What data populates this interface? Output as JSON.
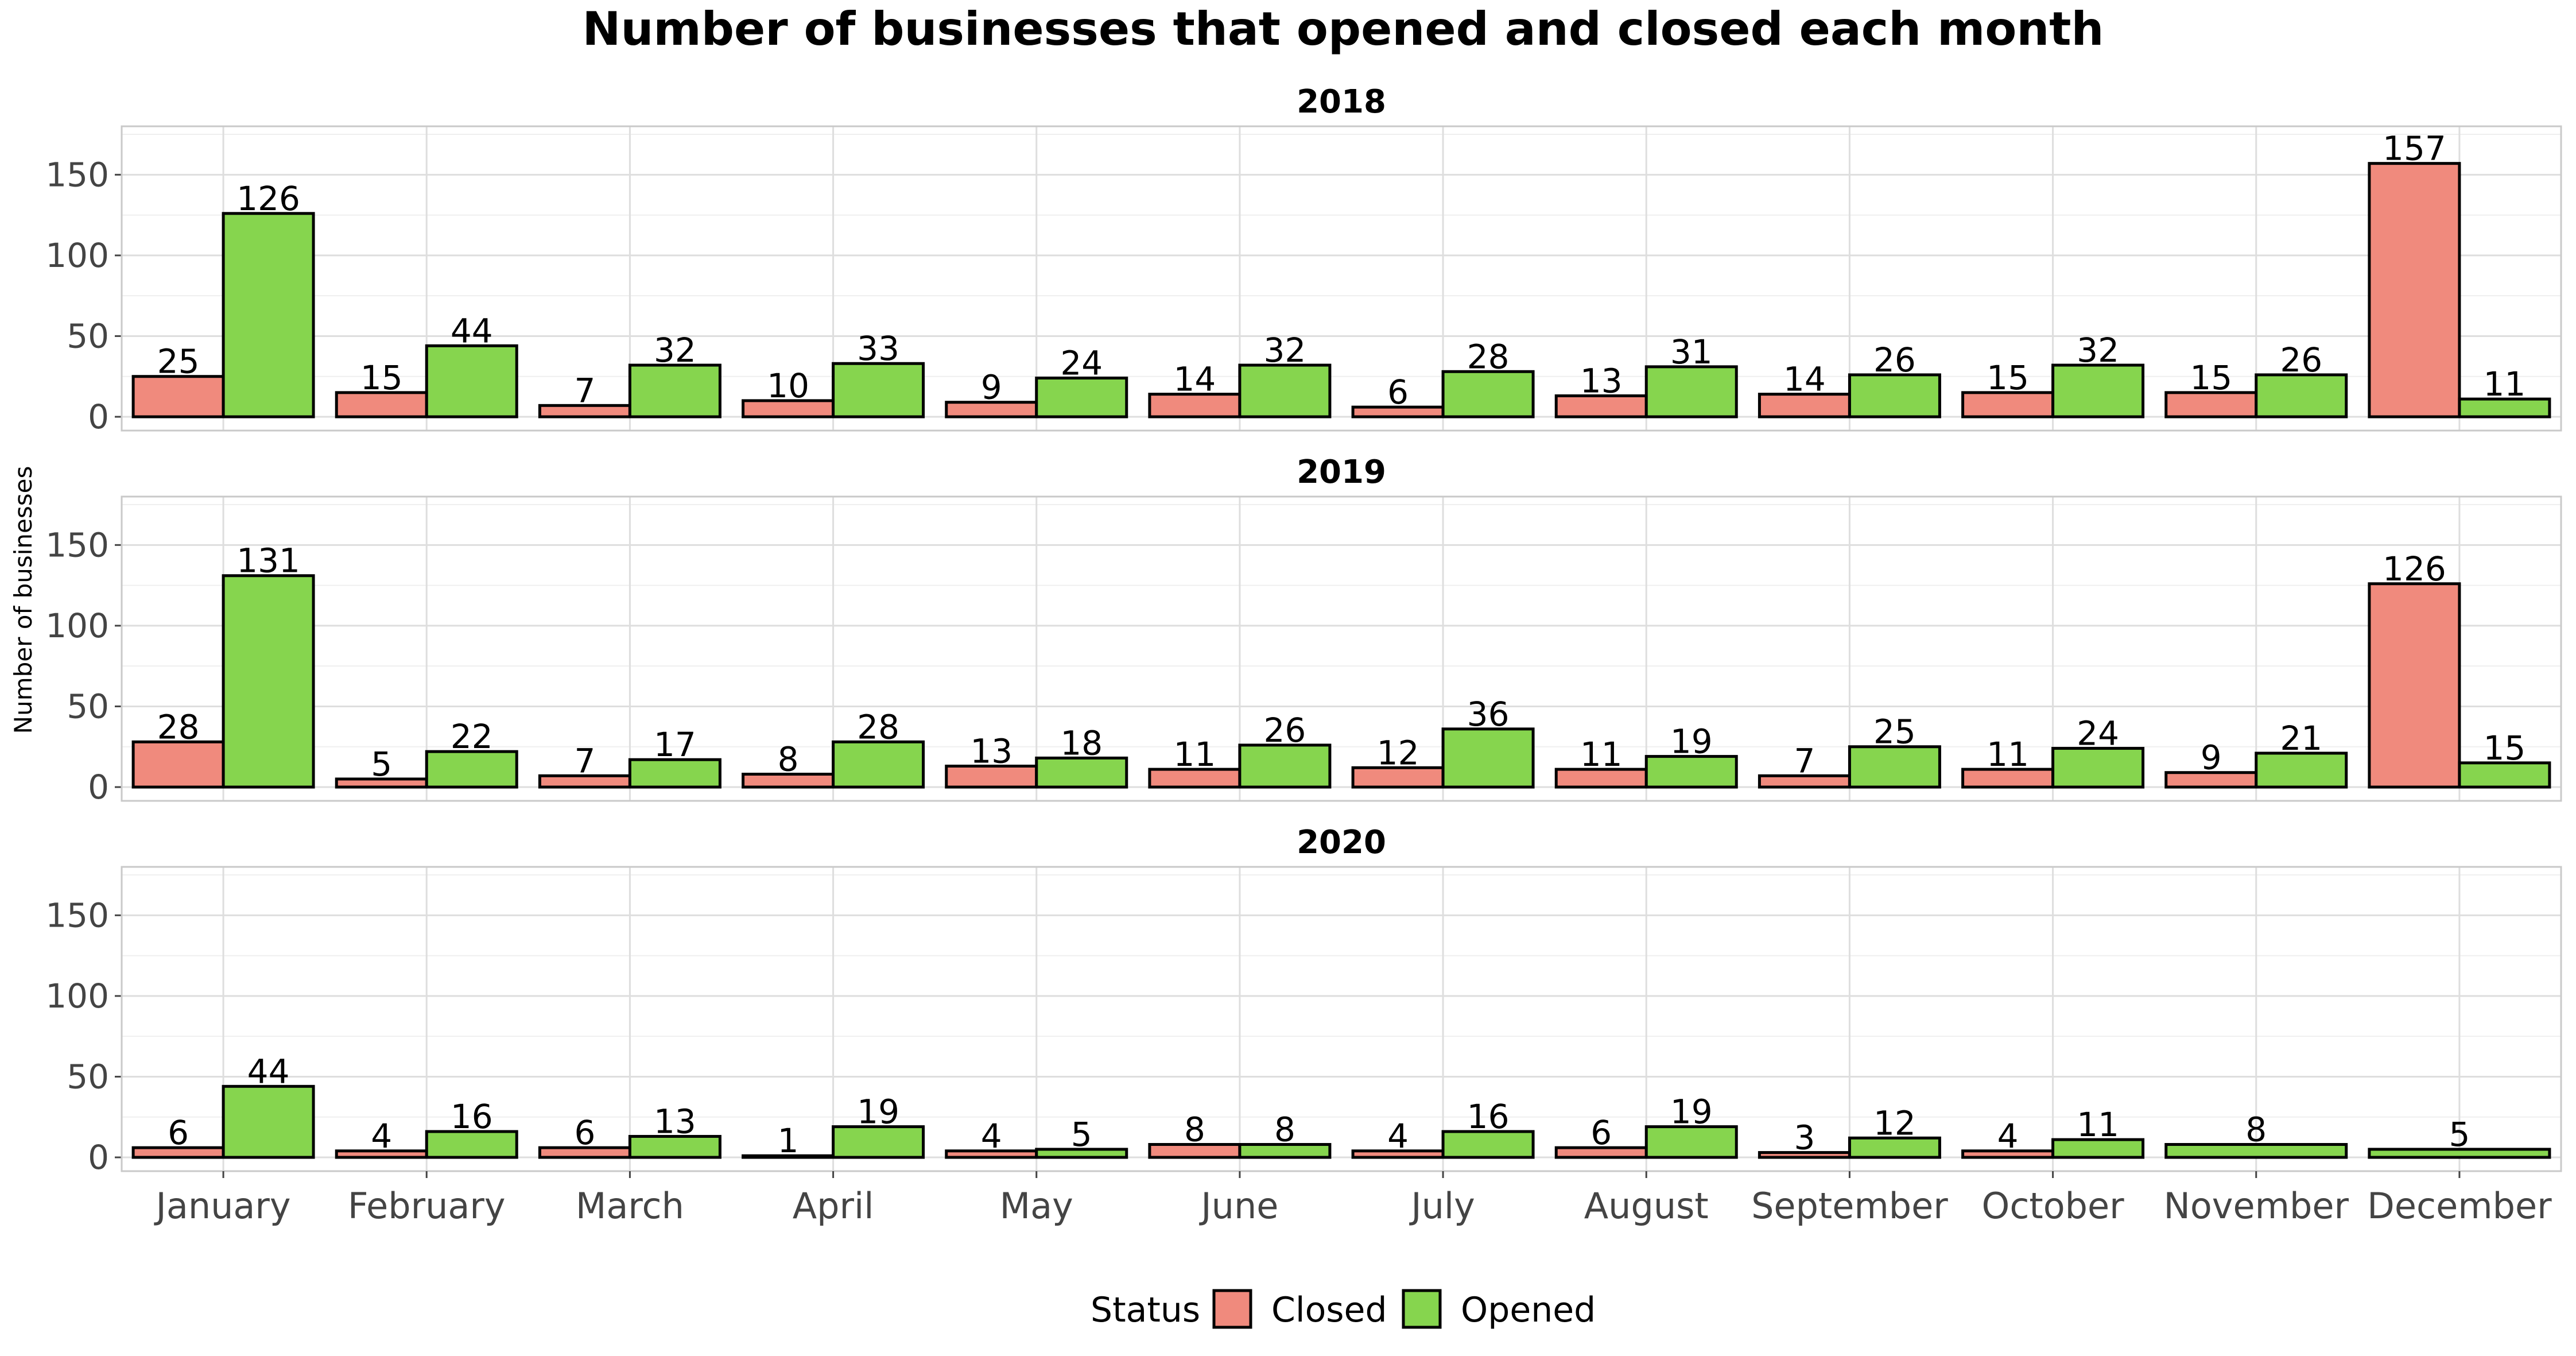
{
  "chart_data": {
    "type": "bar",
    "title": "Number of businesses that opened and closed each month",
    "ylabel": "Number of businesses",
    "xlabel": "",
    "categories": [
      "January",
      "February",
      "March",
      "April",
      "May",
      "June",
      "July",
      "August",
      "September",
      "October",
      "November",
      "December"
    ],
    "ylim": [
      0,
      180
    ],
    "yticks": [
      0,
      50,
      100,
      150
    ],
    "grid": true,
    "legend": {
      "title": "Status",
      "position": "bottom",
      "entries": [
        {
          "name": "Closed",
          "color": "#F08A7D"
        },
        {
          "name": "Opened",
          "color": "#86D54E"
        }
      ]
    },
    "panels": [
      {
        "label": "2018",
        "series": [
          {
            "name": "Closed",
            "values": [
              25,
              15,
              7,
              10,
              9,
              14,
              6,
              13,
              14,
              15,
              15,
              157
            ]
          },
          {
            "name": "Opened",
            "values": [
              126,
              44,
              32,
              33,
              24,
              32,
              28,
              31,
              26,
              32,
              26,
              11
            ]
          }
        ]
      },
      {
        "label": "2019",
        "series": [
          {
            "name": "Closed",
            "values": [
              28,
              5,
              7,
              8,
              13,
              11,
              12,
              11,
              7,
              11,
              9,
              126
            ]
          },
          {
            "name": "Opened",
            "values": [
              131,
              22,
              17,
              28,
              18,
              26,
              36,
              19,
              25,
              24,
              21,
              15
            ]
          }
        ]
      },
      {
        "label": "2020",
        "series": [
          {
            "name": "Closed",
            "values": [
              6,
              4,
              6,
              1,
              4,
              8,
              4,
              6,
              3,
              4,
              null,
              null
            ]
          },
          {
            "name": "Opened",
            "values": [
              44,
              16,
              13,
              19,
              5,
              8,
              16,
              19,
              12,
              11,
              8,
              5
            ]
          }
        ]
      }
    ]
  }
}
